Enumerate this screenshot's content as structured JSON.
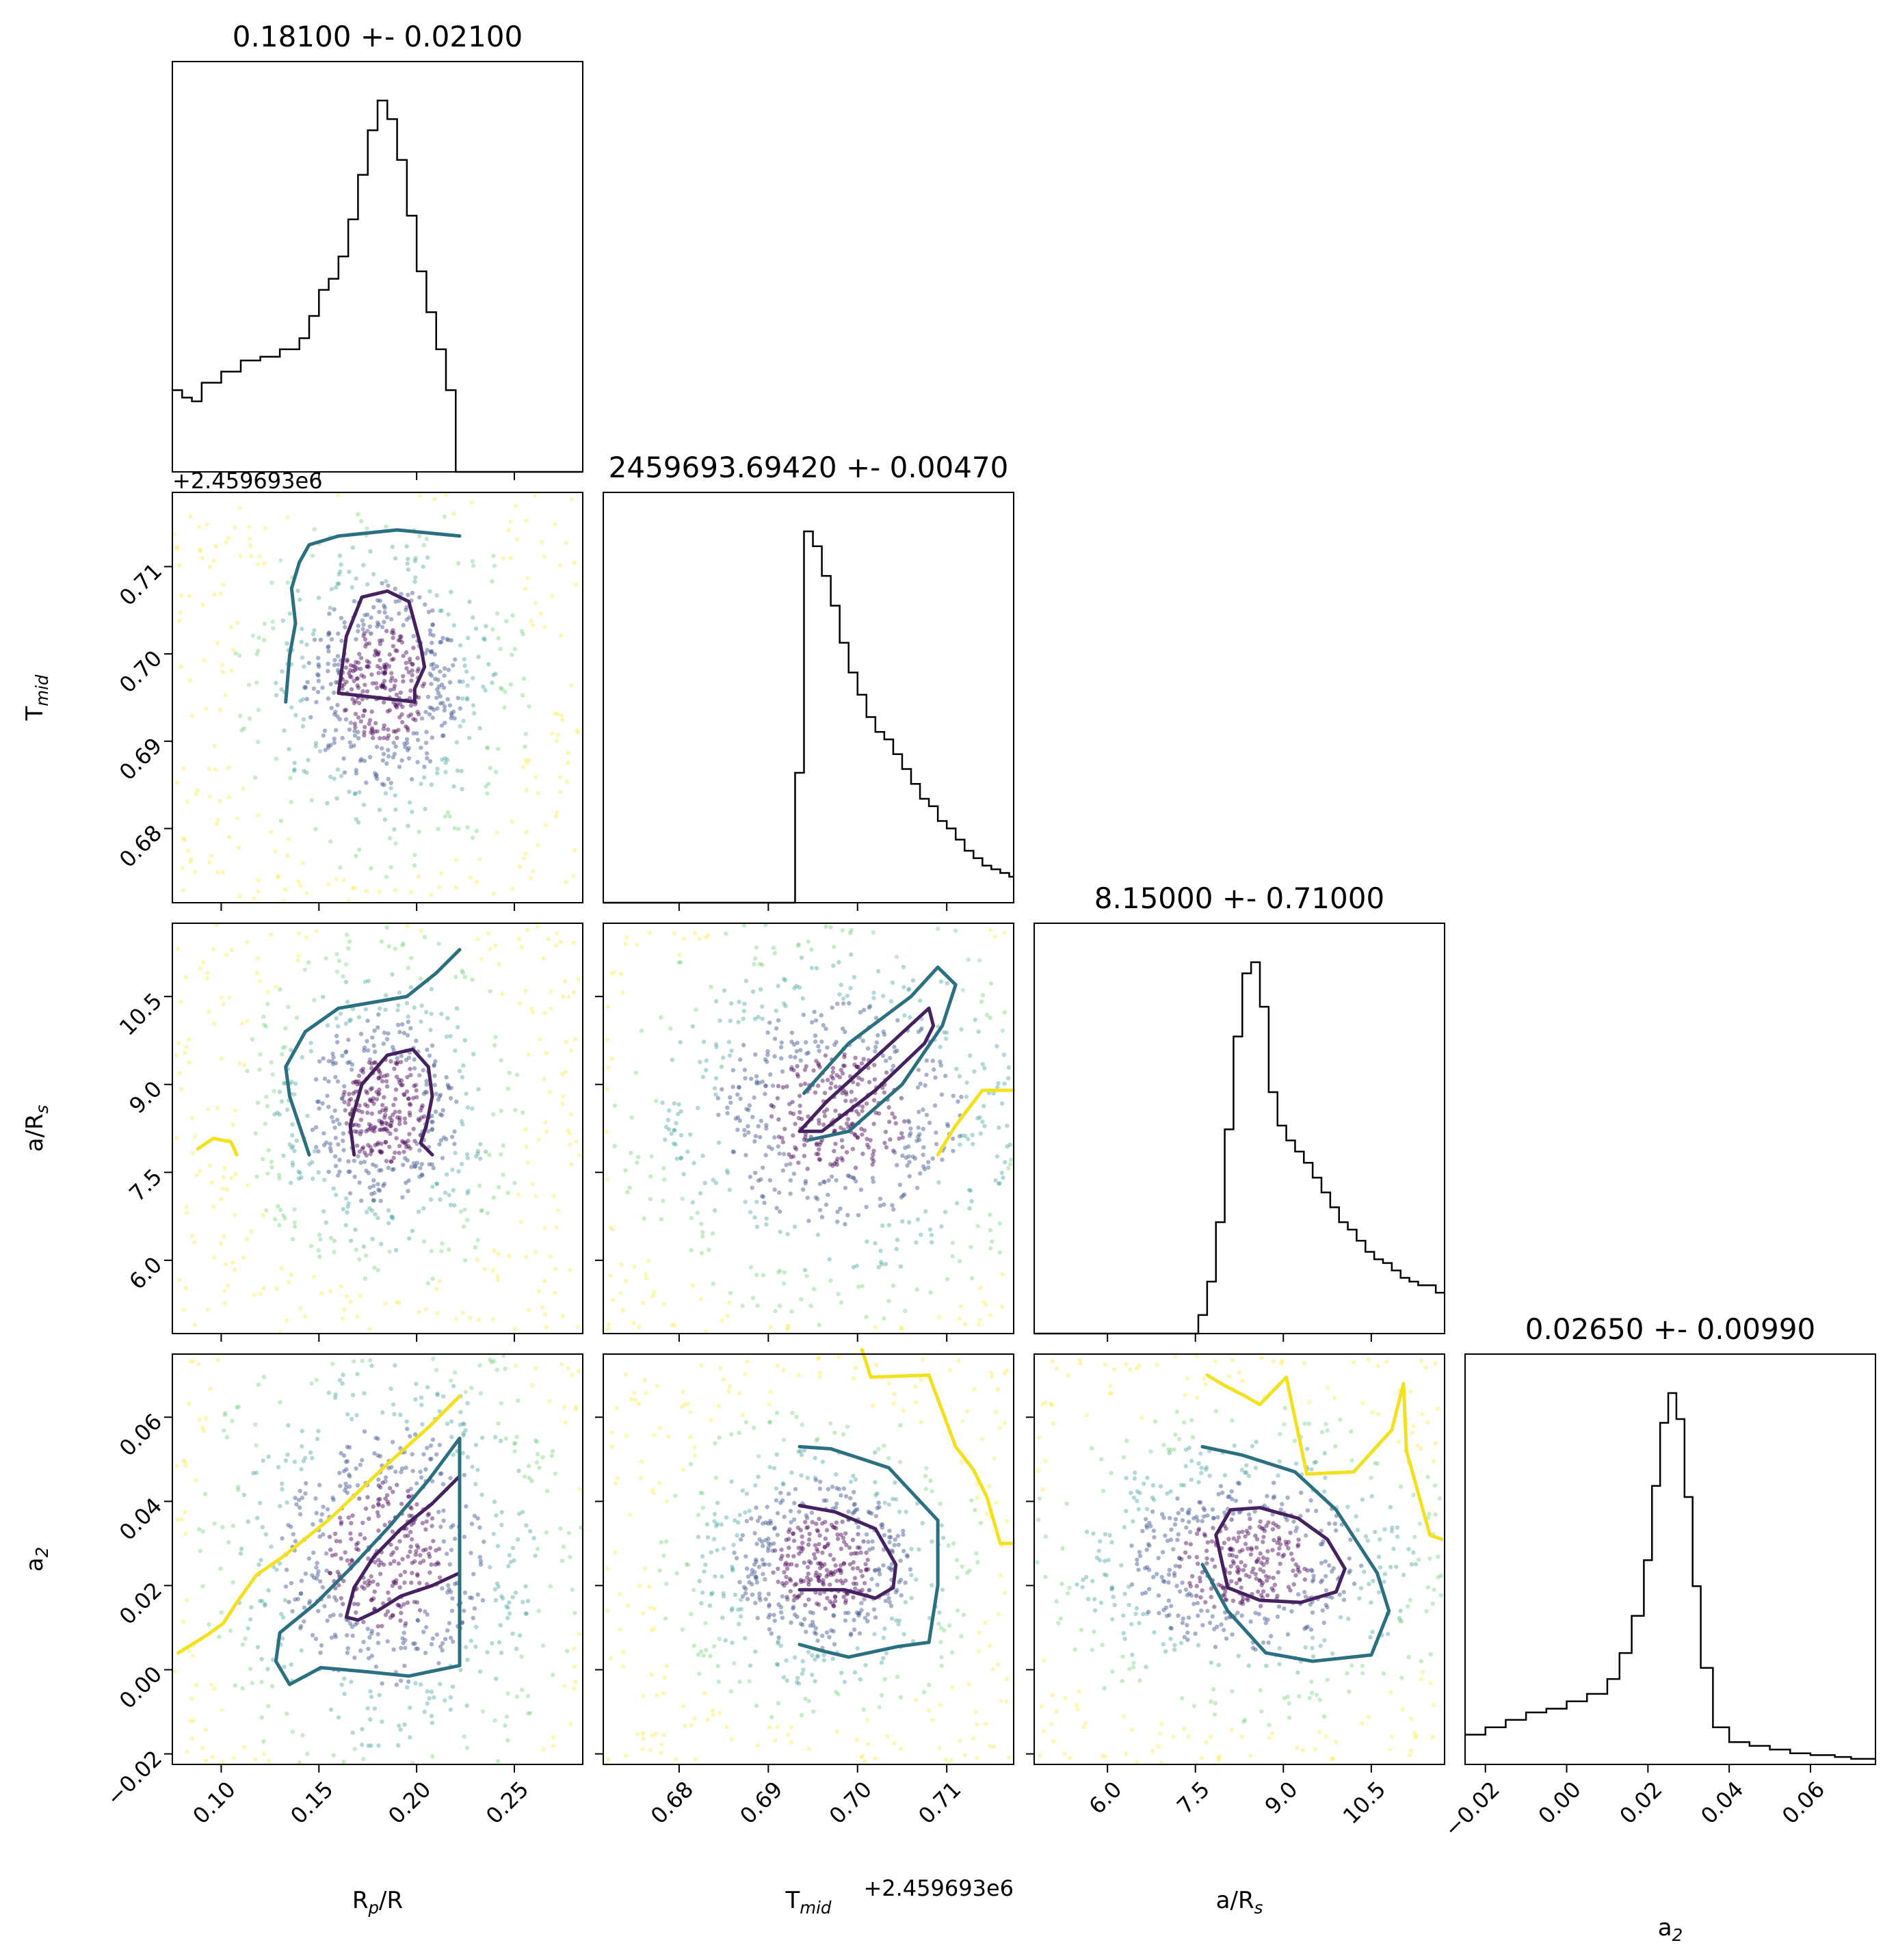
{
  "figure_type": "corner plot",
  "colors": {
    "inner": "#46215f",
    "middle": "#2b7081",
    "outer": "#f3e01f",
    "points": [
      "#440154",
      "#3b528b",
      "#21918c",
      "#5ec962",
      "#fde725"
    ]
  },
  "chart_data": [
    {
      "type": "histogram",
      "panel": "hist-0",
      "title": "0.18100 +- 0.02100",
      "xlim": [
        0.075,
        0.285
      ],
      "bins": [
        [
          0.075,
          0.22
        ],
        [
          0.08,
          0.2
        ],
        [
          0.085,
          0.19
        ],
        [
          0.09,
          0.24
        ],
        [
          0.1,
          0.27
        ],
        [
          0.11,
          0.3
        ],
        [
          0.12,
          0.31
        ],
        [
          0.13,
          0.33
        ],
        [
          0.14,
          0.36
        ],
        [
          0.145,
          0.42
        ],
        [
          0.15,
          0.49
        ],
        [
          0.155,
          0.52
        ],
        [
          0.16,
          0.58
        ],
        [
          0.165,
          0.68
        ],
        [
          0.17,
          0.8
        ],
        [
          0.175,
          0.92
        ],
        [
          0.18,
          1.0
        ],
        [
          0.185,
          0.95
        ],
        [
          0.19,
          0.84
        ],
        [
          0.195,
          0.69
        ],
        [
          0.2,
          0.54
        ],
        [
          0.205,
          0.43
        ],
        [
          0.21,
          0.33
        ],
        [
          0.215,
          0.22
        ],
        [
          0.22,
          0.0
        ]
      ]
    },
    {
      "type": "histogram",
      "panel": "hist-1",
      "title": "2459693.69420 +- 0.00470",
      "xlim": [
        0.6715,
        0.7175
      ],
      "bins": [
        [
          0.6715,
          0.0
        ],
        [
          0.693,
          0.35
        ],
        [
          0.694,
          1.0
        ],
        [
          0.695,
          0.96
        ],
        [
          0.696,
          0.88
        ],
        [
          0.697,
          0.8
        ],
        [
          0.698,
          0.7
        ],
        [
          0.699,
          0.62
        ],
        [
          0.7,
          0.56
        ],
        [
          0.701,
          0.5
        ],
        [
          0.702,
          0.46
        ],
        [
          0.703,
          0.44
        ],
        [
          0.704,
          0.4
        ],
        [
          0.705,
          0.36
        ],
        [
          0.706,
          0.32
        ],
        [
          0.707,
          0.28
        ],
        [
          0.708,
          0.26
        ],
        [
          0.709,
          0.22
        ],
        [
          0.71,
          0.2
        ],
        [
          0.711,
          0.17
        ],
        [
          0.712,
          0.14
        ],
        [
          0.713,
          0.12
        ],
        [
          0.714,
          0.1
        ],
        [
          0.715,
          0.09
        ],
        [
          0.716,
          0.08
        ],
        [
          0.717,
          0.07
        ]
      ]
    },
    {
      "type": "histogram",
      "panel": "hist-2",
      "title": "8.15000 +- 0.71000",
      "xlim": [
        4.75,
        11.75
      ],
      "bins": [
        [
          4.75,
          0.0
        ],
        [
          7.55,
          0.05
        ],
        [
          7.7,
          0.14
        ],
        [
          7.85,
          0.3
        ],
        [
          8.0,
          0.55
        ],
        [
          8.15,
          0.8
        ],
        [
          8.3,
          0.97
        ],
        [
          8.45,
          1.0
        ],
        [
          8.6,
          0.88
        ],
        [
          8.75,
          0.65
        ],
        [
          8.9,
          0.56
        ],
        [
          9.05,
          0.52
        ],
        [
          9.2,
          0.49
        ],
        [
          9.35,
          0.46
        ],
        [
          9.5,
          0.42
        ],
        [
          9.65,
          0.38
        ],
        [
          9.8,
          0.34
        ],
        [
          9.95,
          0.3
        ],
        [
          10.1,
          0.28
        ],
        [
          10.25,
          0.25
        ],
        [
          10.4,
          0.22
        ],
        [
          10.55,
          0.2
        ],
        [
          10.7,
          0.19
        ],
        [
          10.85,
          0.17
        ],
        [
          11.0,
          0.15
        ],
        [
          11.15,
          0.14
        ],
        [
          11.3,
          0.13
        ],
        [
          11.45,
          0.13
        ],
        [
          11.6,
          0.11
        ]
      ]
    },
    {
      "type": "histogram",
      "panel": "hist-3",
      "title": "0.02650 +- 0.00990",
      "xlim": [
        -0.025,
        0.076
      ],
      "bins": [
        [
          -0.025,
          0.08
        ],
        [
          -0.02,
          0.1
        ],
        [
          -0.015,
          0.12
        ],
        [
          -0.01,
          0.14
        ],
        [
          -0.005,
          0.15
        ],
        [
          0.0,
          0.17
        ],
        [
          0.005,
          0.19
        ],
        [
          0.01,
          0.23
        ],
        [
          0.013,
          0.3
        ],
        [
          0.016,
          0.4
        ],
        [
          0.019,
          0.55
        ],
        [
          0.021,
          0.75
        ],
        [
          0.023,
          0.92
        ],
        [
          0.025,
          1.0
        ],
        [
          0.027,
          0.93
        ],
        [
          0.029,
          0.72
        ],
        [
          0.031,
          0.48
        ],
        [
          0.033,
          0.26
        ],
        [
          0.036,
          0.1
        ],
        [
          0.04,
          0.06
        ],
        [
          0.045,
          0.05
        ],
        [
          0.05,
          0.04
        ],
        [
          0.055,
          0.03
        ],
        [
          0.06,
          0.025
        ],
        [
          0.066,
          0.02
        ],
        [
          0.07,
          0.015
        ]
      ]
    },
    {
      "type": "scatter",
      "panel": "joint-1-0",
      "x": "R_p/R_s",
      "y": "T_mid",
      "xlim": [
        0.075,
        0.285
      ],
      "ylim": [
        0.6715,
        0.7185
      ],
      "center": [
        0.183,
        0.6965
      ],
      "contours": [
        {
          "level": "inner",
          "x": [
            0.16,
            0.164,
            0.172,
            0.185,
            0.196,
            0.202,
            0.204,
            0.199,
            0.199,
            0.16
          ],
          "y": [
            0.6955,
            0.702,
            0.7065,
            0.7072,
            0.706,
            0.701,
            0.6985,
            0.696,
            0.6945,
            0.6955
          ]
        },
        {
          "level": "middle",
          "x": [
            0.133,
            0.135,
            0.138,
            0.136,
            0.14,
            0.145,
            0.16,
            0.19,
            0.222
          ],
          "y": [
            0.6945,
            0.6998,
            0.7035,
            0.7075,
            0.7105,
            0.7125,
            0.7135,
            0.7142,
            0.7135
          ]
        },
        {
          "level": "outer",
          "x": [],
          "y": []
        }
      ]
    },
    {
      "type": "scatter",
      "panel": "joint-2-0",
      "x": "R_p/R_s",
      "y": "a/R_s",
      "xlim": [
        0.075,
        0.285
      ],
      "ylim": [
        4.75,
        11.75
      ],
      "center": [
        0.183,
        8.55
      ],
      "contours": [
        {
          "level": "inner",
          "x": [
            0.168,
            0.166,
            0.172,
            0.185,
            0.198,
            0.206,
            0.208,
            0.205,
            0.202,
            0.208
          ],
          "y": [
            7.8,
            8.3,
            9.0,
            9.5,
            9.6,
            9.3,
            8.8,
            8.3,
            8.0,
            7.8
          ]
        },
        {
          "level": "middle",
          "x": [
            0.145,
            0.14,
            0.135,
            0.133,
            0.143,
            0.16,
            0.195,
            0.21,
            0.222,
            0.222
          ],
          "y": [
            7.8,
            8.3,
            8.8,
            9.3,
            9.9,
            10.3,
            10.5,
            10.9,
            11.3,
            11.3
          ]
        },
        {
          "level": "outer",
          "x": [
            0.088,
            0.096,
            0.105,
            0.108
          ],
          "y": [
            7.9,
            8.08,
            8.02,
            7.8
          ]
        }
      ]
    },
    {
      "type": "scatter",
      "panel": "joint-2-1",
      "x": "T_mid",
      "y": "a/R_s",
      "xlim": [
        0.6715,
        0.7175
      ],
      "ylim": [
        4.75,
        11.75
      ],
      "center": [
        0.698,
        8.5
      ],
      "contours": [
        {
          "level": "inner",
          "x": [
            0.6935,
            0.6965,
            0.703,
            0.708,
            0.7085,
            0.7075,
            0.702,
            0.696,
            0.6935
          ],
          "y": [
            8.2,
            8.7,
            9.6,
            10.3,
            10.0,
            9.7,
            8.9,
            8.2,
            8.2
          ]
        },
        {
          "level": "middle",
          "x": [
            0.694,
            0.699,
            0.706,
            0.709,
            0.711,
            0.7095,
            0.705,
            0.699,
            0.6945
          ],
          "y": [
            8.85,
            9.7,
            10.5,
            11.0,
            10.7,
            10.0,
            9.0,
            8.2,
            8.05
          ]
        },
        {
          "level": "outer",
          "x": [
            0.709,
            0.711,
            0.714,
            0.7175
          ],
          "y": [
            7.8,
            8.3,
            8.9,
            8.9
          ]
        }
      ]
    },
    {
      "type": "scatter",
      "panel": "joint-3-0",
      "x": "R_p/R_s",
      "y": "a_2",
      "xlim": [
        0.075,
        0.285
      ],
      "ylim": [
        -0.0225,
        0.075
      ],
      "center": [
        0.184,
        0.027
      ],
      "contours": [
        {
          "level": "inner",
          "x": [
            0.164,
            0.168,
            0.178,
            0.192,
            0.208,
            0.222,
            0.222,
            0.208,
            0.192,
            0.18,
            0.17,
            0.164
          ],
          "y": [
            0.0125,
            0.0195,
            0.0268,
            0.0335,
            0.0395,
            0.046,
            0.023,
            0.02,
            0.0175,
            0.014,
            0.0118,
            0.0125
          ]
        },
        {
          "level": "middle",
          "x": [
            0.128,
            0.13,
            0.148,
            0.166,
            0.186,
            0.206,
            0.222,
            0.222,
            0.196,
            0.175,
            0.151,
            0.135,
            0.128
          ],
          "y": [
            0.002,
            0.0088,
            0.0156,
            0.024,
            0.034,
            0.045,
            0.055,
            0.001,
            -0.0015,
            -0.0005,
            0.0005,
            -0.0035,
            0.002
          ]
        },
        {
          "level": "outer",
          "x": [
            0.078,
            0.092,
            0.101,
            0.108,
            0.118,
            0.132,
            0.156,
            0.183,
            0.207,
            0.222
          ],
          "y": [
            0.004,
            0.008,
            0.011,
            0.016,
            0.0225,
            0.027,
            0.036,
            0.048,
            0.058,
            0.065
          ]
        }
      ]
    },
    {
      "type": "scatter",
      "panel": "joint-3-1",
      "x": "T_mid",
      "y": "a_2",
      "xlim": [
        0.6715,
        0.7175
      ],
      "ylim": [
        -0.0225,
        0.075
      ],
      "center": [
        0.696,
        0.025
      ],
      "contours": [
        {
          "level": "inner",
          "x": [
            0.6935,
            0.6975,
            0.702,
            0.7043,
            0.704,
            0.702,
            0.6985,
            0.6935
          ],
          "y": [
            0.039,
            0.0375,
            0.0335,
            0.025,
            0.0195,
            0.017,
            0.019,
            0.019
          ]
        },
        {
          "level": "middle",
          "x": [
            0.6935,
            0.697,
            0.7035,
            0.709,
            0.709,
            0.708,
            0.7045,
            0.699,
            0.696,
            0.6935
          ],
          "y": [
            0.053,
            0.0525,
            0.048,
            0.0355,
            0.02,
            0.0065,
            0.0055,
            0.003,
            0.0045,
            0.006
          ]
        },
        {
          "level": "outer",
          "x": [
            0.7005,
            0.7015,
            0.708,
            0.711,
            0.713,
            0.7145,
            0.716,
            0.7175
          ],
          "y": [
            0.076,
            0.0695,
            0.07,
            0.053,
            0.0475,
            0.041,
            0.03,
            0.03
          ]
        }
      ]
    },
    {
      "type": "scatter",
      "panel": "joint-3-2",
      "x": "a/R_s",
      "y": "a_2",
      "xlim": [
        4.75,
        11.75
      ],
      "ylim": [
        -0.0225,
        0.075
      ],
      "center": [
        8.35,
        0.025
      ],
      "contours": [
        {
          "level": "inner",
          "x": [
            7.85,
            8.1,
            8.6,
            9.25,
            9.75,
            10.05,
            9.9,
            9.3,
            8.6,
            8.05,
            7.85
          ],
          "y": [
            0.032,
            0.038,
            0.0385,
            0.036,
            0.031,
            0.024,
            0.0185,
            0.016,
            0.0165,
            0.0195,
            0.032
          ]
        },
        {
          "level": "middle",
          "x": [
            7.62,
            8.3,
            9.2,
            9.9,
            10.6,
            10.8,
            10.5,
            9.5,
            8.7,
            8.05,
            7.62
          ],
          "y": [
            0.053,
            0.051,
            0.047,
            0.038,
            0.023,
            0.014,
            0.0035,
            0.002,
            0.004,
            0.014,
            0.025
          ]
        },
        {
          "level": "outer",
          "x": [
            7.7,
            8.0,
            8.35,
            8.6,
            9.05,
            9.4,
            10.2,
            10.85,
            11.05,
            11.1,
            11.5,
            11.7
          ],
          "y": [
            0.07,
            0.0675,
            0.065,
            0.063,
            0.0695,
            0.0465,
            0.047,
            0.057,
            0.068,
            0.052,
            0.032,
            0.031
          ]
        }
      ]
    }
  ],
  "x_ticks": [
    {
      "panel": 0,
      "labels": [
        "0.10",
        "0.15",
        "0.20",
        "0.25"
      ],
      "values": [
        0.1,
        0.15,
        0.2,
        0.25
      ]
    },
    {
      "panel": 1,
      "labels": [
        "0.68",
        "0.69",
        "0.70",
        "0.71"
      ],
      "values": [
        0.68,
        0.69,
        0.7,
        0.71
      ]
    },
    {
      "panel": 2,
      "labels": [
        "6.0",
        "7.5",
        "9.0",
        "10.5"
      ],
      "values": [
        6.0,
        7.5,
        9.0,
        10.5
      ]
    },
    {
      "panel": 3,
      "labels": [
        "−0.02",
        "0.00",
        "0.02",
        "0.04",
        "0.06"
      ],
      "values": [
        -0.02,
        0.0,
        0.02,
        0.04,
        0.06
      ]
    }
  ],
  "y_ticks": [
    {
      "row": 1,
      "labels": [
        "0.68",
        "0.69",
        "0.70",
        "0.71"
      ],
      "values": [
        0.68,
        0.69,
        0.7,
        0.71
      ]
    },
    {
      "row": 2,
      "labels": [
        "6.0",
        "7.5",
        "9.0",
        "10.5"
      ],
      "values": [
        6.0,
        7.5,
        9.0,
        10.5
      ]
    },
    {
      "row": 3,
      "labels": [
        "−0.02",
        "0.00",
        "0.02",
        "0.04",
        "0.06"
      ],
      "values": [
        -0.02,
        0.0,
        0.02,
        0.04,
        0.06
      ]
    }
  ],
  "x_axis_labels": [
    "R_p/R_s",
    "T_mid",
    "a/R_s",
    "a_2"
  ],
  "y_axis_labels": [
    "T_mid",
    "a/R_s",
    "a_2"
  ],
  "offset_text_y": "+2.459693e6",
  "offset_text_x": "+2.459693e6"
}
